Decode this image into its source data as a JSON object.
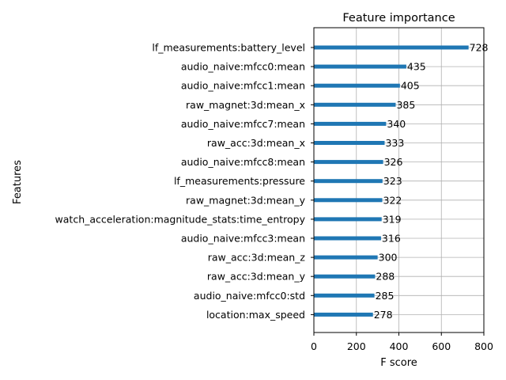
{
  "chart_data": {
    "type": "bar",
    "orientation": "horizontal",
    "title": "Feature importance",
    "xlabel": "F score",
    "ylabel": "Features",
    "xlim": [
      0,
      800
    ],
    "xticks": [
      "0",
      "200",
      "400",
      "600",
      "800"
    ],
    "grid": true,
    "bar_color": "#1f77b4",
    "categories": [
      "lf_measurements:battery_level",
      "audio_naive:mfcc0:mean",
      "audio_naive:mfcc1:mean",
      "raw_magnet:3d:mean_x",
      "audio_naive:mfcc7:mean",
      "raw_acc:3d:mean_x",
      "audio_naive:mfcc8:mean",
      "lf_measurements:pressure",
      "raw_magnet:3d:mean_y",
      "watch_acceleration:magnitude_stats:time_entropy",
      "audio_naive:mfcc3:mean",
      "raw_acc:3d:mean_z",
      "raw_acc:3d:mean_y",
      "audio_naive:mfcc0:std",
      "location:max_speed"
    ],
    "values": [
      728,
      435,
      405,
      385,
      340,
      333,
      326,
      323,
      322,
      319,
      316,
      300,
      288,
      285,
      278
    ],
    "value_labels": [
      "728",
      "435",
      "405",
      "385",
      "340",
      "333",
      "326",
      "323",
      "322",
      "319",
      "316",
      "300",
      "288",
      "285",
      "278"
    ]
  }
}
